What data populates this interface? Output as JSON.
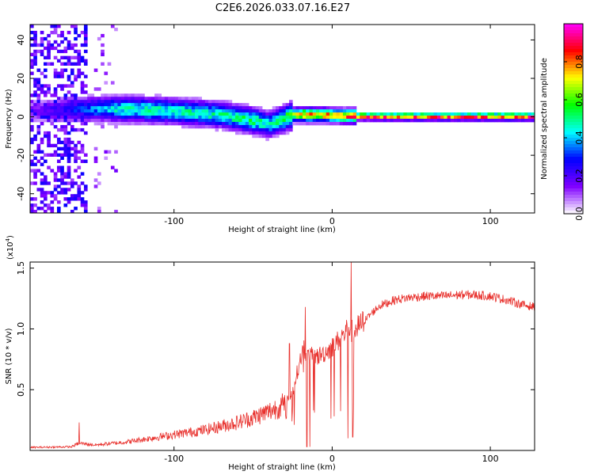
{
  "title": "C2E6.2026.033.07.16.E27",
  "chart_data": [
    {
      "type": "heatmap",
      "title": "C2E6.2026.033.07.16.E27",
      "xlabel": "Height of straight line (km)",
      "ylabel": "Frequency (Hz)",
      "xlim": [
        -191,
        128
      ],
      "ylim": [
        -50,
        48
      ],
      "xticks": [
        -100,
        0,
        100
      ],
      "xtick_labels": [
        "-100",
        "0",
        "100"
      ],
      "yticks": [
        -40,
        -20,
        0,
        20,
        40
      ],
      "ytick_labels": [
        "-40",
        "-20",
        "0",
        "20",
        "40"
      ],
      "colorbar": {
        "label": "Normalized spectral amplitude",
        "range": [
          0,
          1
        ],
        "ticks": [
          0.0,
          0.2,
          0.4,
          0.6,
          0.8
        ],
        "tick_labels": [
          "0.0",
          "0.2",
          "0.4",
          "0.6",
          "0.8"
        ],
        "colors": [
          "#ffffff",
          "#8000ff",
          "#0000ff",
          "#00ffff",
          "#00ff00",
          "#ffff00",
          "#ff0000",
          "#ff00ff"
        ]
      },
      "ridge": {
        "description_points_x": [
          -191,
          -160,
          -130,
          -100,
          -70,
          -50,
          -40,
          -30,
          -25,
          -15,
          -5,
          5,
          15,
          50,
          100,
          128
        ],
        "center_frequency": [
          3,
          4,
          4,
          3,
          1,
          -2,
          -4,
          -1,
          1,
          1,
          1,
          0.5,
          0.3,
          0.2,
          0.2,
          0.2
        ],
        "peak_amplitude": [
          0.15,
          0.35,
          0.55,
          0.55,
          0.55,
          0.6,
          0.5,
          0.6,
          0.8,
          0.95,
          0.9,
          0.85,
          1.0,
          1.0,
          1.0,
          1.0
        ]
      }
    },
    {
      "type": "line",
      "xlabel": "Height of straight line (km)",
      "ylabel": "SNR (10 * v/v)",
      "scale_label": "(x10",
      "scale_exponent": "4",
      "scale_suffix": ")",
      "xlim": [
        -191,
        128
      ],
      "ylim": [
        0,
        15500
      ],
      "xticks": [
        -100,
        0,
        100
      ],
      "xtick_labels": [
        "-100",
        "0",
        "100"
      ],
      "yticks": [
        5000,
        10000,
        15000
      ],
      "ytick_labels": [
        "0.5",
        "1.0",
        "1.5"
      ],
      "color": "#e8302c",
      "envelope": {
        "x": [
          -191,
          -165,
          -160,
          -150,
          -130,
          -120,
          -100,
          -80,
          -70,
          -60,
          -50,
          -40,
          -30,
          -25,
          -22,
          -20,
          -18,
          -16,
          -15,
          -10,
          -5,
          0,
          5,
          8,
          10,
          12,
          15,
          20,
          25,
          30,
          40,
          50,
          60,
          70,
          80,
          90,
          100,
          110,
          120,
          128
        ],
        "y": [
          250,
          300,
          600,
          450,
          700,
          900,
          1300,
          1700,
          2000,
          2300,
          2700,
          3200,
          3800,
          4800,
          6500,
          7500,
          8500,
          7800,
          7800,
          7700,
          8000,
          8500,
          9200,
          9600,
          10200,
          9800,
          10000,
          10600,
          11300,
          11900,
          12400,
          12600,
          12700,
          12700,
          12800,
          12800,
          12700,
          12400,
          12000,
          11800
        ]
      },
      "spikes": [
        {
          "x": -160,
          "y": 2300
        },
        {
          "x": -27,
          "y": 8800
        },
        {
          "x": -17,
          "y": 11800
        },
        {
          "x": -14,
          "y": 300
        },
        {
          "x": -16,
          "y": 300
        },
        {
          "x": 10,
          "y": 1000
        },
        {
          "x": 12,
          "y": 15500
        },
        {
          "x": 13,
          "y": 1100
        }
      ]
    }
  ]
}
